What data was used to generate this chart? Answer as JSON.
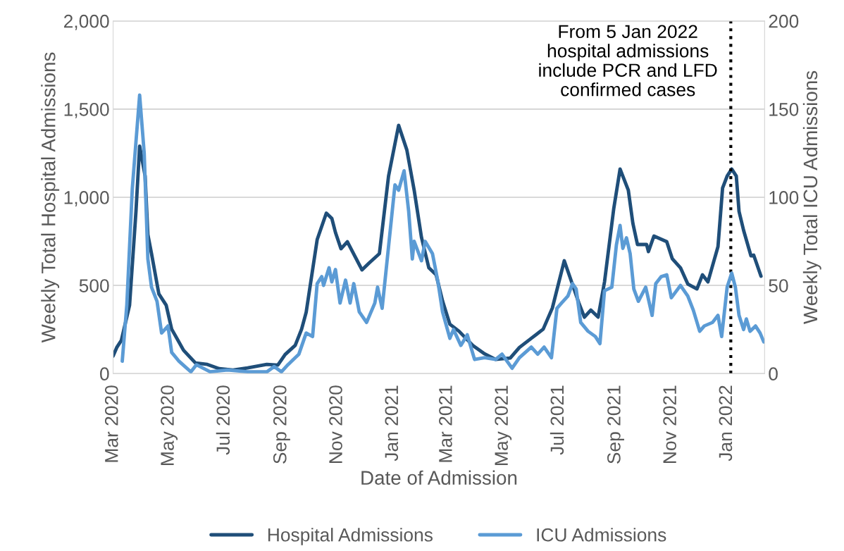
{
  "chart_data": {
    "type": "line",
    "xlabel": "Date of Admission",
    "ylabel": "Weekly Total Hospital Admissions",
    "y2label": "Weekly Total ICU Admissions",
    "xlim": [
      "2020-03-01",
      "2022-02-11"
    ],
    "xticks": [
      {
        "value": "2020-03-01",
        "label": "Mar 2020"
      },
      {
        "value": "2020-05-01",
        "label": "May 2020"
      },
      {
        "value": "2020-07-01",
        "label": "Jul 2020"
      },
      {
        "value": "2020-09-01",
        "label": "Sep 2020"
      },
      {
        "value": "2020-11-01",
        "label": "Nov 2020"
      },
      {
        "value": "2021-01-01",
        "label": "Jan 2021"
      },
      {
        "value": "2021-03-01",
        "label": "Mar 2021"
      },
      {
        "value": "2021-05-01",
        "label": "May 2021"
      },
      {
        "value": "2021-07-01",
        "label": "Jul 2021"
      },
      {
        "value": "2021-09-01",
        "label": "Sep 2021"
      },
      {
        "value": "2021-11-01",
        "label": "Nov 2021"
      },
      {
        "value": "2022-01-01",
        "label": "Jan 2022"
      }
    ],
    "ylim": [
      0,
      2000
    ],
    "yticks": [
      0,
      500,
      {
        "value": 1000,
        "label": "1,000"
      },
      {
        "value": 1500,
        "label": "1,500"
      },
      {
        "value": 2000,
        "label": "2,000"
      }
    ],
    "y2lim": [
      0,
      200
    ],
    "y2ticks": [
      0,
      50,
      100,
      150,
      200
    ],
    "grid": "y",
    "legend": "bottom",
    "line_style": "solid",
    "ref_lines": [
      {
        "axis": "x",
        "value": "2022-01-05",
        "label": null,
        "color": "#000000",
        "line_style": "dotted"
      }
    ],
    "annotations": [
      "From 5 Jan 2022\nhospital admissions\ninclude PCR and LFD\nconfirmed cases"
    ],
    "series": [
      {
        "name": "Hospital Admissions",
        "color": "#1f4e79",
        "x": [
          "2020-03-01",
          "2020-03-05",
          "2020-03-10",
          "2020-03-19",
          "2020-03-26",
          "2020-03-30",
          "2020-04-05",
          "2020-04-08",
          "2020-04-12",
          "2020-04-20",
          "2020-04-28",
          "2020-05-04",
          "2020-05-17",
          "2020-05-30",
          "2020-06-12",
          "2020-06-25",
          "2020-07-10",
          "2020-07-26",
          "2020-08-16",
          "2020-08-28",
          "2020-09-05",
          "2020-09-16",
          "2020-09-23",
          "2020-09-28",
          "2020-10-03",
          "2020-10-10",
          "2020-10-20",
          "2020-10-26",
          "2020-10-30",
          "2020-11-05",
          "2020-11-12",
          "2020-11-20",
          "2020-11-28",
          "2020-12-06",
          "2020-12-17",
          "2020-12-27",
          "2021-01-07",
          "2021-01-16",
          "2021-01-24",
          "2021-02-01",
          "2021-02-09",
          "2021-02-17",
          "2021-02-24",
          "2021-03-04",
          "2021-03-14",
          "2021-03-29",
          "2021-04-11",
          "2021-04-23",
          "2021-05-09",
          "2021-05-19",
          "2021-06-01",
          "2021-06-14",
          "2021-06-24",
          "2021-07-07",
          "2021-07-15",
          "2021-07-23",
          "2021-07-29",
          "2021-08-05",
          "2021-08-13",
          "2021-08-20",
          "2021-08-30",
          "2021-09-06",
          "2021-09-15",
          "2021-09-20",
          "2021-09-25",
          "2021-10-05",
          "2021-10-07",
          "2021-10-13",
          "2021-10-27",
          "2021-11-02",
          "2021-11-11",
          "2021-11-19",
          "2021-11-29",
          "2021-12-05",
          "2021-12-11",
          "2021-12-22",
          "2021-12-27",
          "2022-01-01",
          "2022-01-06",
          "2022-01-11",
          "2022-01-14",
          "2022-01-19",
          "2022-01-27",
          "2022-01-30",
          "2022-02-07"
        ],
        "values": [
          100,
          148,
          188,
          388,
          920,
          1290,
          1120,
          788,
          680,
          452,
          388,
          252,
          132,
          60,
          52,
          28,
          20,
          32,
          52,
          48,
          108,
          160,
          252,
          348,
          520,
          760,
          910,
          880,
          800,
          708,
          748,
          668,
          588,
          628,
          680,
          1120,
          1408,
          1268,
          1040,
          772,
          600,
          560,
          412,
          280,
          240,
          160,
          112,
          80,
          88,
          148,
          200,
          252,
          372,
          640,
          520,
          400,
          320,
          360,
          320,
          520,
          932,
          1160,
          1040,
          852,
          732,
          732,
          692,
          780,
          748,
          652,
          600,
          508,
          480,
          560,
          520,
          720,
          1052,
          1120,
          1160,
          1120,
          920,
          812,
          668,
          672,
          552
        ]
      },
      {
        "name": "ICU Admissions",
        "color": "#5b9bd5",
        "axis": "y2",
        "x": [
          "2020-03-11",
          "2020-03-16",
          "2020-03-22",
          "2020-03-30",
          "2020-04-04",
          "2020-04-08",
          "2020-04-12",
          "2020-04-18",
          "2020-04-23",
          "2020-04-30",
          "2020-05-04",
          "2020-05-12",
          "2020-05-25",
          "2020-05-31",
          "2020-06-15",
          "2020-07-04",
          "2020-07-26",
          "2020-08-16",
          "2020-08-24",
          "2020-09-01",
          "2020-09-08",
          "2020-09-20",
          "2020-09-28",
          "2020-10-05",
          "2020-10-10",
          "2020-10-15",
          "2020-10-17",
          "2020-10-23",
          "2020-10-26",
          "2020-10-30",
          "2020-11-04",
          "2020-11-10",
          "2020-11-15",
          "2020-11-19",
          "2020-11-25",
          "2020-12-03",
          "2020-12-12",
          "2020-12-15",
          "2020-12-20",
          "2020-12-27",
          "2021-01-03",
          "2021-01-07",
          "2021-01-13",
          "2021-01-18",
          "2021-01-22",
          "2021-01-24",
          "2021-02-01",
          "2021-02-05",
          "2021-02-13",
          "2021-02-19",
          "2021-02-24",
          "2021-03-04",
          "2021-03-08",
          "2021-03-16",
          "2021-03-23",
          "2021-03-31",
          "2021-04-11",
          "2021-04-23",
          "2021-04-30",
          "2021-05-11",
          "2021-05-19",
          "2021-06-01",
          "2021-06-08",
          "2021-06-15",
          "2021-06-23",
          "2021-06-29",
          "2021-07-04",
          "2021-07-11",
          "2021-07-16",
          "2021-07-20",
          "2021-07-25",
          "2021-08-02",
          "2021-08-10",
          "2021-08-15",
          "2021-08-20",
          "2021-08-28",
          "2021-09-02",
          "2021-09-06",
          "2021-09-09",
          "2021-09-13",
          "2021-09-17",
          "2021-09-21",
          "2021-09-26",
          "2021-10-04",
          "2021-10-11",
          "2021-10-15",
          "2021-10-21",
          "2021-10-27",
          "2021-11-01",
          "2021-11-11",
          "2021-11-19",
          "2021-11-25",
          "2021-12-02",
          "2021-12-07",
          "2021-12-16",
          "2021-12-22",
          "2021-12-26",
          "2022-01-01",
          "2022-01-06",
          "2022-01-10",
          "2022-01-14",
          "2022-01-19",
          "2022-01-22",
          "2022-01-26",
          "2022-02-01",
          "2022-02-06",
          "2022-02-10"
        ],
        "values": [
          7,
          39,
          105,
          158,
          125,
          65,
          49,
          41,
          23,
          27,
          12,
          7,
          1,
          5,
          1,
          2,
          1,
          1,
          4,
          1,
          5,
          11,
          23,
          21,
          51,
          55,
          50,
          60,
          52,
          59,
          40,
          53,
          40,
          51,
          35,
          29,
          40,
          49,
          37,
          72,
          107,
          104,
          115,
          92,
          65,
          75,
          64,
          75,
          68,
          52,
          35,
          20,
          25,
          16,
          22,
          8,
          9,
          8,
          11,
          3,
          9,
          15,
          11,
          15,
          9,
          37,
          40,
          44,
          51,
          48,
          29,
          24,
          21,
          17,
          47,
          49,
          73,
          84,
          71,
          77,
          68,
          48,
          41,
          49,
          33,
          51,
          55,
          56,
          43,
          50,
          44,
          36,
          24,
          27,
          29,
          33,
          21,
          49,
          57,
          49,
          33,
          25,
          31,
          24,
          27,
          23,
          18
        ]
      }
    ]
  }
}
